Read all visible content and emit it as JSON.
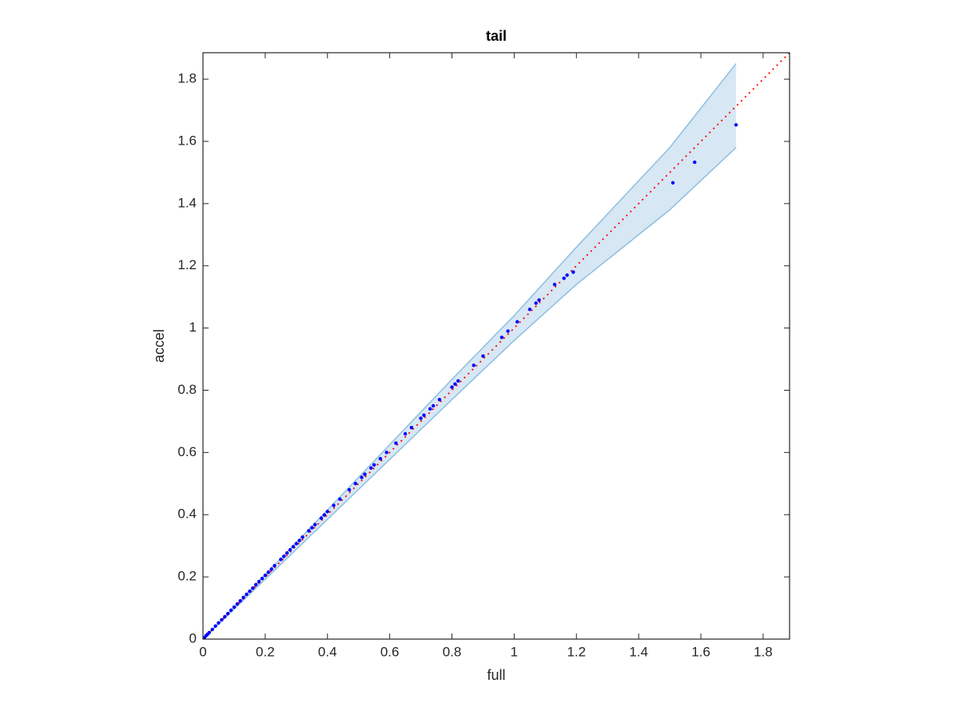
{
  "chart_data": {
    "type": "scatter",
    "title": "tail",
    "x_label": "full",
    "y_label": "accel",
    "x": [
      0.005,
      0.01,
      0.015,
      0.02,
      0.03,
      0.04,
      0.05,
      0.06,
      0.07,
      0.08,
      0.09,
      0.1,
      0.11,
      0.12,
      0.13,
      0.14,
      0.15,
      0.16,
      0.17,
      0.18,
      0.19,
      0.2,
      0.21,
      0.22,
      0.23,
      0.25,
      0.26,
      0.27,
      0.28,
      0.29,
      0.3,
      0.31,
      0.32,
      0.34,
      0.35,
      0.36,
      0.38,
      0.39,
      0.4,
      0.42,
      0.44,
      0.47,
      0.49,
      0.51,
      0.52,
      0.54,
      0.55,
      0.57,
      0.59,
      0.62,
      0.65,
      0.67,
      0.7,
      0.71,
      0.73,
      0.74,
      0.76,
      0.8,
      0.81,
      0.82,
      0.87,
      0.9,
      0.96,
      0.98,
      1.01,
      1.05,
      1.07,
      1.08,
      1.13,
      1.16,
      1.17,
      1.19,
      1.51,
      1.58,
      1.713
    ],
    "y": [
      0.005,
      0.011,
      0.016,
      0.021,
      0.031,
      0.042,
      0.052,
      0.062,
      0.072,
      0.082,
      0.093,
      0.103,
      0.113,
      0.123,
      0.134,
      0.144,
      0.154,
      0.164,
      0.175,
      0.185,
      0.195,
      0.205,
      0.215,
      0.225,
      0.236,
      0.256,
      0.266,
      0.277,
      0.287,
      0.297,
      0.307,
      0.317,
      0.328,
      0.348,
      0.358,
      0.368,
      0.389,
      0.399,
      0.41,
      0.43,
      0.45,
      0.48,
      0.5,
      0.52,
      0.53,
      0.55,
      0.56,
      0.58,
      0.6,
      0.63,
      0.66,
      0.68,
      0.71,
      0.72,
      0.74,
      0.75,
      0.77,
      0.81,
      0.82,
      0.83,
      0.88,
      0.91,
      0.97,
      0.99,
      1.02,
      1.06,
      1.08,
      1.09,
      1.14,
      1.16,
      1.17,
      1.18,
      1.467,
      1.533,
      1.653
    ],
    "point_color": "#0000ff",
    "band": {
      "x": [
        0,
        0.4,
        0.8,
        1.0,
        1.2,
        1.5,
        1.713
      ],
      "upper": [
        0,
        0.415,
        0.835,
        1.04,
        1.26,
        1.58,
        1.85
      ],
      "lower": [
        0,
        0.385,
        0.77,
        0.96,
        1.14,
        1.38,
        1.58
      ],
      "fill": "#d7e7f4",
      "edge": "#8dbfe0"
    },
    "identity_line": true,
    "identity_color": "#ff0000",
    "xlim": [
      0,
      1.885
    ],
    "ylim": [
      0,
      1.885
    ],
    "xticks": [
      0,
      0.2,
      0.4,
      0.6,
      0.8,
      1,
      1.2,
      1.4,
      1.6,
      1.8
    ],
    "yticks": [
      0,
      0.2,
      0.4,
      0.6,
      0.8,
      1,
      1.2,
      1.4,
      1.6,
      1.8
    ]
  }
}
